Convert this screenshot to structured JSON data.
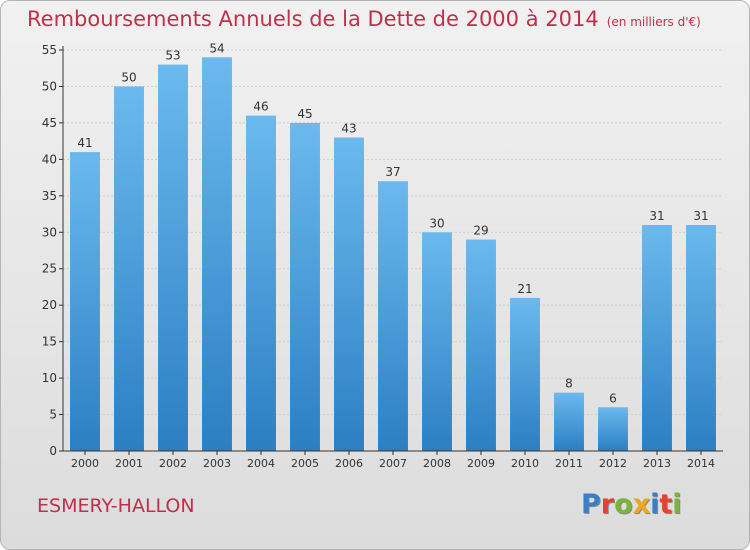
{
  "header": {
    "title": "Remboursements Annuels de la Dette de 2000 à 2014",
    "unit": "(en milliers d'€)"
  },
  "footer": {
    "place": "ESMERY-HALLON",
    "logo_letters": [
      "P",
      "r",
      "o",
      "x",
      "i",
      "t",
      "i"
    ],
    "logo_colors": [
      "#3a7dc8",
      "#e6422f",
      "#7ab53a",
      "#f2a51e",
      "#3a7dc8",
      "#e6422f",
      "#7ab53a"
    ]
  },
  "colors": {
    "bar_top": "#6bb9ef",
    "bar_bottom": "#2b7fc2",
    "title": "#c0304a",
    "axis": "#333333",
    "grid": "#cfcfcf"
  },
  "chart_data": {
    "type": "bar",
    "title": "Remboursements Annuels de la Dette de 2000 à 2014",
    "categories": [
      "2000",
      "2001",
      "2002",
      "2003",
      "2004",
      "2005",
      "2006",
      "2007",
      "2008",
      "2009",
      "2010",
      "2011",
      "2012",
      "2013",
      "2014"
    ],
    "values": [
      41,
      50,
      53,
      54,
      46,
      45,
      43,
      37,
      30,
      29,
      21,
      8,
      6,
      31,
      31
    ],
    "ylim": [
      0,
      55
    ],
    "yticks": [
      0,
      5,
      10,
      15,
      20,
      25,
      30,
      35,
      40,
      45,
      50,
      55
    ],
    "grid": true,
    "data_labels": true
  }
}
